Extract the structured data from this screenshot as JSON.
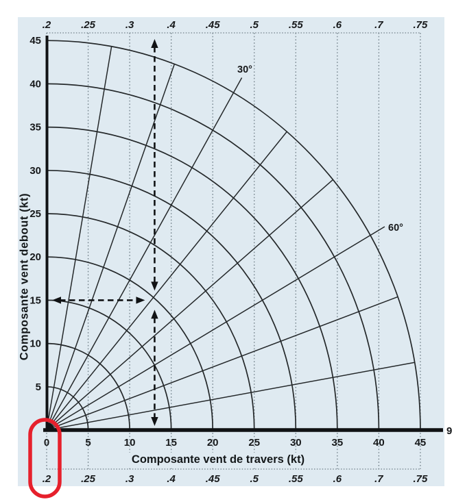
{
  "figure": {
    "panel_color": "#dfeaf1",
    "line_color": "#24282a",
    "axis_color": "#101214",
    "grid_dot_color": "#6e7d86",
    "text_color": "#17191b",
    "annotation_red": "#e6202c"
  },
  "chart_data": {
    "type": "line",
    "title": "",
    "xlabel": "Composante vent de travers (kt)",
    "ylabel": "Composante vent debout (kt)",
    "xlim": [
      0,
      45
    ],
    "ylim": [
      0,
      45
    ],
    "grid": "dotted vertical gridlines at ratio-scale positions; polar grid of speed arcs and angle radials",
    "x_ticks": [
      0,
      5,
      10,
      15,
      20,
      25,
      30,
      35,
      40,
      45
    ],
    "y_ticks": [
      5,
      10,
      15,
      20,
      25,
      30,
      35,
      40,
      45
    ],
    "ratio_scale_labels": [
      ".2",
      ".25",
      ".3",
      ".4",
      ".45",
      ".5",
      ".55",
      ".6",
      ".7",
      ".75"
    ],
    "ratio_scale_positions_kt": [
      0,
      5,
      10,
      15,
      20,
      25,
      30,
      35,
      40,
      45
    ],
    "arc_radii_kt": [
      5,
      10,
      15,
      20,
      25,
      30,
      35,
      40,
      45
    ],
    "radial_angles_deg": [
      10,
      20,
      30,
      40,
      50,
      60,
      70,
      80
    ],
    "angle_labels": [
      {
        "text": "30°",
        "angle_deg": 30
      },
      {
        "text": "60°",
        "angle_deg": 60
      }
    ],
    "axis_end_label": "9",
    "example": {
      "wind_speed_kt": 20,
      "wind_angle_deg": 40,
      "crosswind_kt": 13,
      "headwind_kt": 15
    },
    "annotations": {
      "red_oval_highlight": "origin area: x tick 0 and ratio label .2"
    }
  }
}
